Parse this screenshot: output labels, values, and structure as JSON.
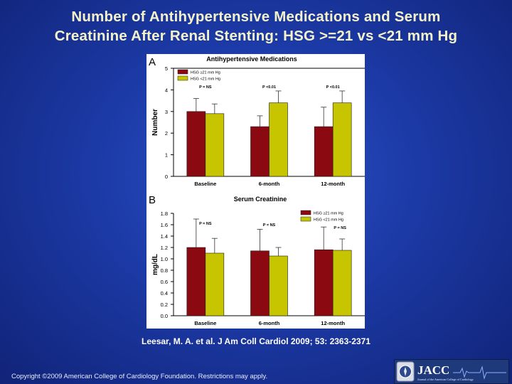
{
  "slide": {
    "title_line1": "Number of Antihypertensive Medications and Serum",
    "title_line2": "Creatinine After Renal Stenting: HSG >=21 vs <21 mm Hg",
    "citation": "Leesar, M. A. et al. J Am Coll Cardiol 2009; 53: 2363-2371",
    "copyright": "Copyright ©2009 American College of Cardiology Foundation. Restrictions may apply.",
    "logo_text": "JACC",
    "logo_subtext": "Journal of the American College of Cardiology"
  },
  "colors": {
    "hsg_ge21": "#8b0a12",
    "hsg_lt21": "#c7c500"
  },
  "chart_data": [
    {
      "type": "bar",
      "panel": "A",
      "title": "Antihypertensive Medications",
      "ylabel": "Number",
      "xlabel": "",
      "ylim": [
        0,
        5
      ],
      "yticks": [
        0,
        1,
        2,
        3,
        4,
        5
      ],
      "categories": [
        "Baseline",
        "6-month",
        "12-month"
      ],
      "series": [
        {
          "name": "HSG ≥21 mm Hg",
          "values": [
            3.0,
            2.3,
            2.3
          ],
          "errors": [
            0.6,
            0.5,
            0.9
          ]
        },
        {
          "name": "HSG <21 mm Hg",
          "values": [
            2.9,
            3.4,
            3.4
          ],
          "errors": [
            0.45,
            0.55,
            0.55
          ]
        }
      ],
      "annotations": [
        "P = NS",
        "P <0.01",
        "P <0.01"
      ],
      "legend": "top-left"
    },
    {
      "type": "bar",
      "panel": "B",
      "title": "Serum Creatinine",
      "ylabel": "mg/dL",
      "xlabel": "",
      "ylim": [
        0,
        1.8
      ],
      "yticks": [
        0.0,
        0.2,
        0.4,
        0.6,
        0.8,
        1.0,
        1.2,
        1.4,
        1.6,
        1.8
      ],
      "categories": [
        "Baseline",
        "6-month",
        "12-month"
      ],
      "series": [
        {
          "name": "HSG ≥21 mm Hg",
          "values": [
            1.2,
            1.14,
            1.16
          ],
          "errors": [
            0.5,
            0.38,
            0.4
          ]
        },
        {
          "name": "HSG <21 mm Hg",
          "values": [
            1.1,
            1.05,
            1.15
          ],
          "errors": [
            0.26,
            0.15,
            0.2
          ]
        }
      ],
      "annotations": [
        "P = NS",
        "P = NS",
        "P = NS"
      ],
      "legend": "top-right"
    }
  ]
}
